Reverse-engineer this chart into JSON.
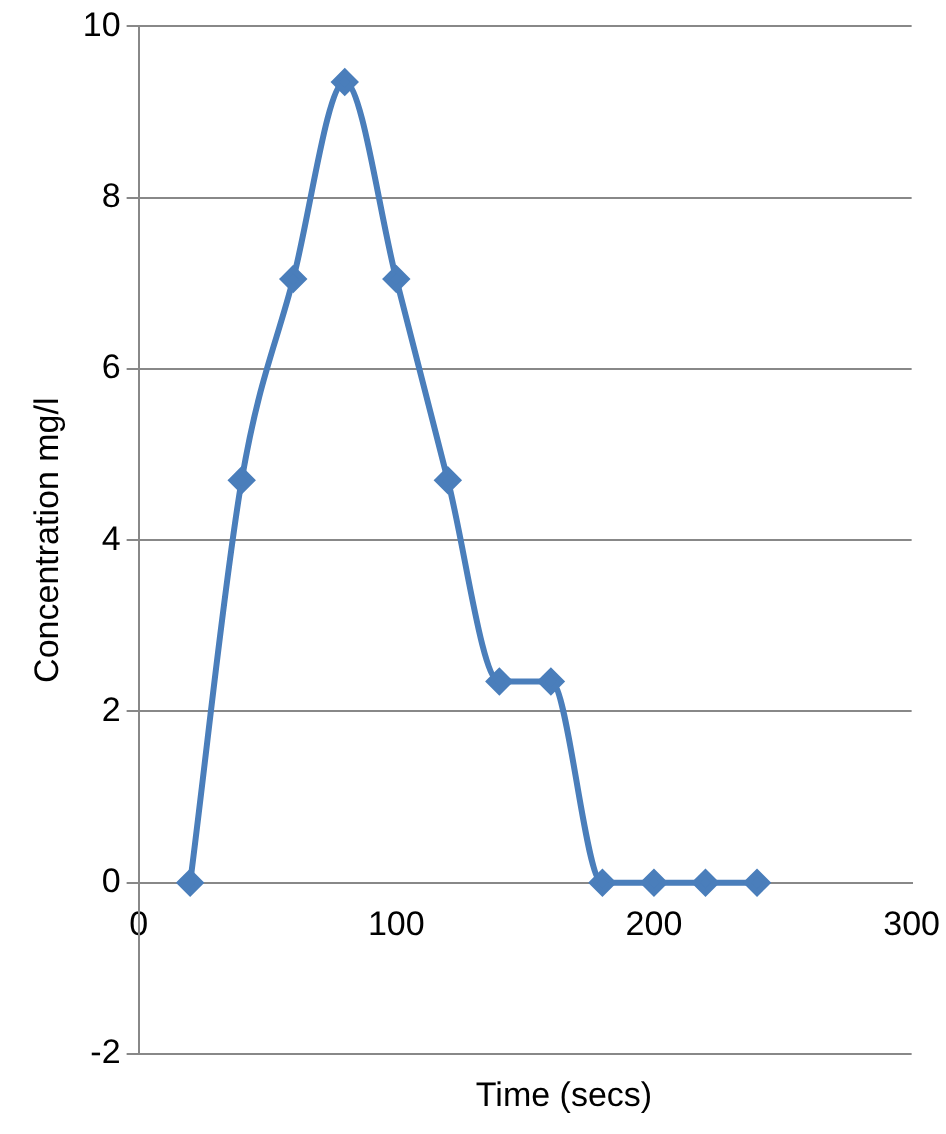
{
  "chart_data": {
    "type": "line",
    "xlabel": "Time (secs)",
    "ylabel": "Concentration mg/l",
    "x": [
      20,
      40,
      60,
      80,
      100,
      120,
      140,
      160,
      180,
      200,
      220,
      240
    ],
    "series": [
      {
        "color": "#4a7ebb",
        "values": [
          0,
          4.7,
          7.05,
          9.35,
          7.05,
          4.7,
          2.35,
          2.35,
          0,
          0,
          0,
          0
        ]
      }
    ],
    "xlim": [
      0,
      300
    ],
    "xticks": [
      0,
      100,
      200,
      300
    ],
    "ylim": [
      -2,
      10
    ],
    "yticks": [
      -2,
      0,
      2,
      4,
      6,
      8,
      10
    ],
    "grid": "y",
    "legend": false,
    "marker": "diamond",
    "line_style": "solid"
  }
}
